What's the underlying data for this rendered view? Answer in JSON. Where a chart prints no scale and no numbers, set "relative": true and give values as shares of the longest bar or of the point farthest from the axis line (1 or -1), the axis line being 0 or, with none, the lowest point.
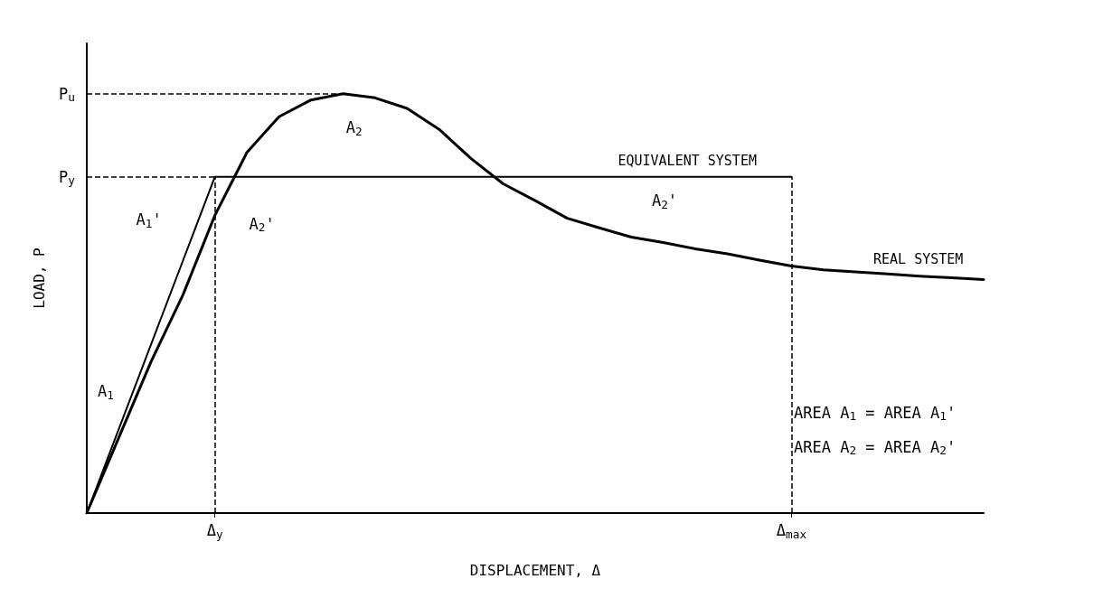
{
  "chart_data": {
    "type": "line",
    "relative": true,
    "xlabel": "DISPLACEMENT, Δ",
    "ylabel": "LOAD, P",
    "grid": false,
    "legend": false,
    "marker": "none",
    "line_style": "solid",
    "categories": [
      null,
      null,
      null,
      null,
      "Δ$_{y}$",
      null,
      null,
      null,
      null,
      null,
      null,
      null,
      null,
      null,
      null,
      null,
      null,
      null,
      null,
      null,
      null,
      null,
      "Δ$_{max}$",
      null,
      null,
      null,
      null,
      null,
      null
    ],
    "series": [
      {
        "name": "EQUIVALENT SYSTEM",
        "color": "#000000",
        "values": [
          0,
          0.2005,
          0.401,
          0.6015,
          0.802,
          0.802,
          0.802,
          0.802,
          0.802,
          0.802,
          0.802,
          0.802,
          0.802,
          0.802,
          0.802,
          0.802,
          0.802,
          0.802,
          0.802,
          0.802,
          0.802,
          0.802,
          0.802,
          null,
          null,
          null,
          null,
          null,
          null
        ]
      },
      {
        "name": "REAL SYSTEM",
        "color": "#000000",
        "values": [
          0,
          0.18,
          0.36,
          0.52,
          0.71,
          0.86,
          0.945,
          0.985,
          1,
          0.99,
          0.965,
          0.915,
          0.845,
          0.785,
          0.745,
          0.703,
          0.68,
          0.658,
          0.645,
          0.63,
          0.618,
          0.603,
          0.589,
          0.58,
          0.575,
          0.57,
          0.565,
          0.561,
          0.557
        ]
      }
    ],
    "ref_lines": [
      {
        "axis": "y",
        "value": 1,
        "label": "P$_{u}$",
        "line_style": "dashed",
        "color": "#000000"
      },
      {
        "axis": "y",
        "value": 0.802,
        "label": "P$_{y}$",
        "line_style": "dashed",
        "color": "#000000"
      },
      {
        "axis": "x",
        "value": "Δ$_{y}$",
        "line_style": "dashed",
        "color": "#000000"
      },
      {
        "axis": "x",
        "value": "Δ$_{max}$",
        "line_style": "dashed",
        "color": "#000000"
      }
    ],
    "annotations": [
      "A$_{1}$",
      "A$_{1}$'",
      "A$_{2}$'",
      "A$_{2}$",
      "A$_{2}$'",
      "AREA A$_{1}$ = AREA A$_{1}$'",
      "AREA A$_{2}$ = AREA A$_{2}$'"
    ]
  }
}
